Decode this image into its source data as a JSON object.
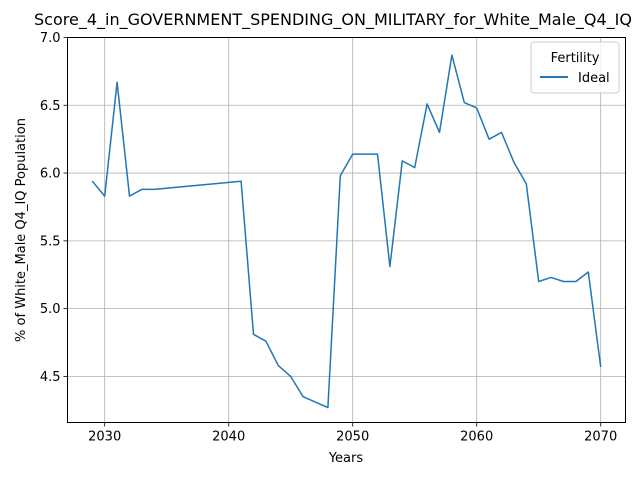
{
  "chart_data": {
    "type": "line",
    "title": "Score_4_in_GOVERNMENT_SPENDING_ON_MILITARY_for_White_Male_Q4_IQ",
    "xlabel": "Years",
    "ylabel": "% of White_Male Q4_IQ Population",
    "xlim": [
      2027,
      2072
    ],
    "ylim": [
      4.16,
      7.0
    ],
    "xticks": [
      2030,
      2040,
      2050,
      2060,
      2070
    ],
    "yticks": [
      4.5,
      5.0,
      5.5,
      6.0,
      6.5,
      7.0
    ],
    "grid": true,
    "legend": {
      "title": "Fertility",
      "placement": "top-right"
    },
    "series": [
      {
        "name": "Ideal",
        "color": "#1f77b4",
        "x": [
          2029,
          2030,
          2031,
          2032,
          2033,
          2034,
          2041,
          2042,
          2043,
          2044,
          2045,
          2046,
          2048,
          2049,
          2050,
          2051,
          2052,
          2053,
          2054,
          2055,
          2056,
          2057,
          2058,
          2059,
          2060,
          2061,
          2062,
          2063,
          2064,
          2065,
          2066,
          2067,
          2068,
          2069,
          2070
        ],
        "y": [
          5.94,
          5.83,
          6.67,
          5.83,
          5.88,
          5.88,
          5.94,
          4.81,
          4.76,
          4.58,
          4.5,
          4.35,
          4.27,
          5.98,
          6.14,
          6.14,
          6.14,
          5.31,
          6.09,
          6.04,
          6.51,
          6.3,
          6.87,
          6.52,
          6.48,
          6.25,
          6.3,
          6.08,
          5.92,
          5.2,
          5.23,
          5.2,
          5.2,
          5.27,
          4.57
        ]
      }
    ]
  }
}
